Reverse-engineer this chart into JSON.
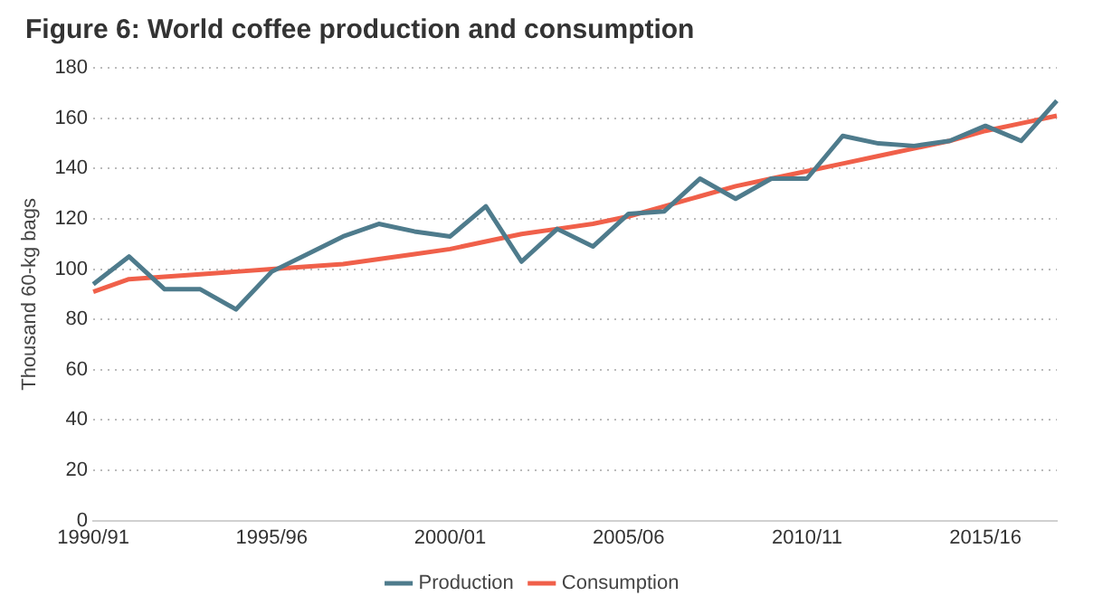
{
  "chart_data": {
    "type": "line",
    "title": "Figure 6: World coffee production and consumption",
    "ylabel": "Thousand 60-kg bags",
    "categories": [
      "1990/91",
      null,
      null,
      null,
      null,
      "1995/96",
      null,
      null,
      null,
      null,
      "2000/01",
      null,
      null,
      null,
      null,
      "2005/06",
      null,
      null,
      null,
      null,
      "2010/11",
      null,
      null,
      null,
      null,
      "2015/16",
      null,
      null
    ],
    "series": [
      {
        "name": "Production",
        "color": "#4e7b8c",
        "values": [
          94,
          105,
          92,
          92,
          84,
          99,
          106,
          113,
          118,
          115,
          113,
          125,
          103,
          116,
          109,
          122,
          123,
          136,
          128,
          136,
          136,
          153,
          150,
          149,
          151,
          157,
          151,
          167
        ]
      },
      {
        "name": "Consumption",
        "color": "#f0604a",
        "values": [
          91,
          96,
          97,
          98,
          99,
          100,
          101,
          102,
          104,
          106,
          108,
          111,
          114,
          116,
          118,
          121,
          125,
          129,
          133,
          136,
          139,
          142,
          145,
          148,
          151,
          155,
          158,
          161
        ]
      }
    ],
    "ylim": [
      0,
      180
    ],
    "yticks": [
      0,
      20,
      40,
      60,
      80,
      100,
      120,
      140,
      160,
      180
    ],
    "grid": "y",
    "legend": "bottom",
    "marker": "none",
    "line_style": "solid"
  }
}
